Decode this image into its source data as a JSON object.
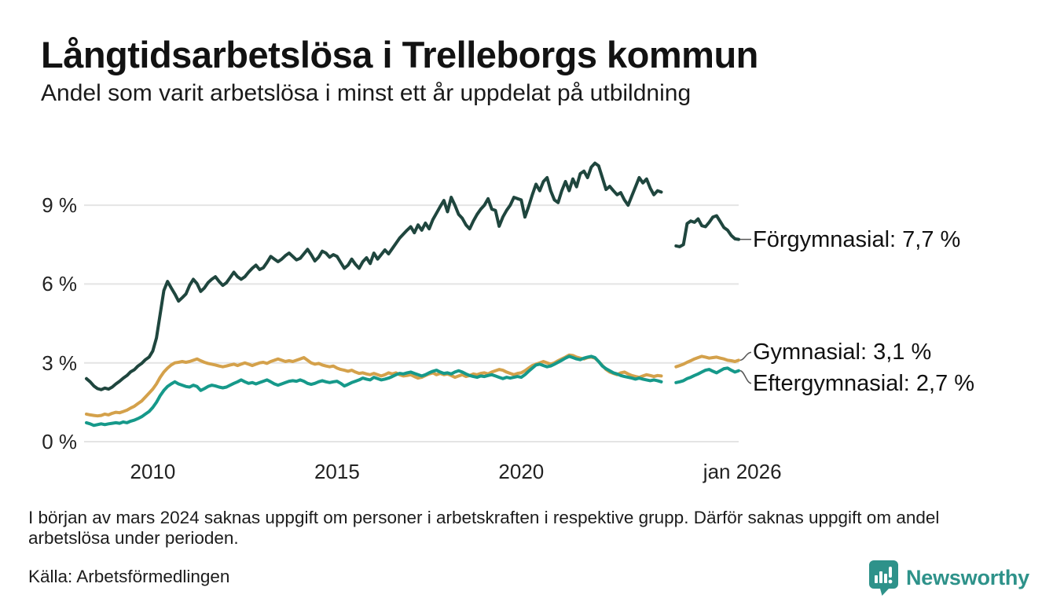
{
  "header": {
    "title": "Långtidsarbetslösa i Trelleborgs kommun",
    "subtitle": "Andel som varit arbetslösa i minst ett år uppdelat på utbildning"
  },
  "chart_data": {
    "type": "line",
    "title": "Långtidsarbetslösa i Trelleborgs kommun",
    "subtitle": "Andel som varit arbetslösa i minst ett år uppdelat på utbildning",
    "unit": "%",
    "x_start": 2008.2,
    "x_step": 0.1,
    "x_domain": [
      2008.2,
      2025.9
    ],
    "ylim": [
      0,
      10.8
    ],
    "grid": "horizontal",
    "grid_color": "#e4e4e4",
    "y_ticks": [
      {
        "value": 0,
        "label": "0 %"
      },
      {
        "value": 3,
        "label": "3 %"
      },
      {
        "value": 6,
        "label": "6 %"
      },
      {
        "value": 9,
        "label": "9 %"
      }
    ],
    "x_ticks": [
      {
        "value": 2010,
        "label": "2010"
      },
      {
        "value": 2015,
        "label": "2015"
      },
      {
        "value": 2020,
        "label": "2020"
      },
      {
        "value": 2026,
        "label": "jan 2026"
      }
    ],
    "series": [
      {
        "name": "Förgymnasial",
        "color": "#1f463e",
        "end_label": "Förgymnasial: 7,7 %",
        "end_value": 7.7,
        "values": [
          2.4,
          2.28,
          2.12,
          2.02,
          1.98,
          2.04,
          2.0,
          2.08,
          2.2,
          2.3,
          2.42,
          2.52,
          2.66,
          2.74,
          2.88,
          2.98,
          3.12,
          3.22,
          3.45,
          3.95,
          4.85,
          5.75,
          6.1,
          5.85,
          5.62,
          5.35,
          5.48,
          5.62,
          5.95,
          6.18,
          6.02,
          5.72,
          5.85,
          6.05,
          6.18,
          6.28,
          6.1,
          5.95,
          6.05,
          6.25,
          6.45,
          6.28,
          6.18,
          6.28,
          6.45,
          6.6,
          6.72,
          6.55,
          6.62,
          6.82,
          7.05,
          6.95,
          6.85,
          6.95,
          7.08,
          7.18,
          7.05,
          6.92,
          6.98,
          7.15,
          7.32,
          7.12,
          6.88,
          7.02,
          7.25,
          7.18,
          7.02,
          7.12,
          7.05,
          6.82,
          6.6,
          6.72,
          6.95,
          6.75,
          6.6,
          6.85,
          7.0,
          6.78,
          7.18,
          6.95,
          7.12,
          7.3,
          7.15,
          7.35,
          7.55,
          7.75,
          7.9,
          8.05,
          8.18,
          7.95,
          8.25,
          8.05,
          8.32,
          8.1,
          8.45,
          8.7,
          8.95,
          9.18,
          8.75,
          9.3,
          9.0,
          8.65,
          8.5,
          8.25,
          8.1,
          8.4,
          8.65,
          8.85,
          9.0,
          9.25,
          8.85,
          8.8,
          8.2,
          8.55,
          8.8,
          9.0,
          9.3,
          9.25,
          9.2,
          8.55,
          8.95,
          9.4,
          9.8,
          9.55,
          9.9,
          10.05,
          9.55,
          9.2,
          9.1,
          9.55,
          9.9,
          9.55,
          10.0,
          9.7,
          10.2,
          10.3,
          10.05,
          10.45,
          10.6,
          10.5,
          10.05,
          9.6,
          9.72,
          9.55,
          9.4,
          9.48,
          9.2,
          9.0,
          9.35,
          9.7,
          10.05,
          9.85,
          10.0,
          9.65,
          9.4,
          9.55,
          9.5,
          null,
          null,
          null,
          7.45,
          7.42,
          7.5,
          8.3,
          8.4,
          8.35,
          8.48,
          8.22,
          8.18,
          8.35,
          8.55,
          8.6,
          8.38,
          8.15,
          8.05,
          7.85,
          7.72,
          7.7
        ]
      },
      {
        "name": "Gymnasial",
        "color": "#d4a14b",
        "end_label": "Gymnasial: 3,1 %",
        "end_value": 3.1,
        "values": [
          1.05,
          1.02,
          1.0,
          0.98,
          1.0,
          1.05,
          1.02,
          1.08,
          1.12,
          1.1,
          1.15,
          1.2,
          1.28,
          1.35,
          1.45,
          1.55,
          1.7,
          1.85,
          2.0,
          2.2,
          2.45,
          2.65,
          2.8,
          2.92,
          3.0,
          3.02,
          3.05,
          3.02,
          3.05,
          3.1,
          3.15,
          3.08,
          3.02,
          2.98,
          2.95,
          2.92,
          2.88,
          2.85,
          2.88,
          2.92,
          2.95,
          2.9,
          2.95,
          3.0,
          2.95,
          2.9,
          2.95,
          3.0,
          3.02,
          2.98,
          3.05,
          3.1,
          3.15,
          3.1,
          3.05,
          3.08,
          3.05,
          3.1,
          3.15,
          3.2,
          3.1,
          3.0,
          2.95,
          2.98,
          2.92,
          2.88,
          2.85,
          2.88,
          2.8,
          2.75,
          2.72,
          2.68,
          2.72,
          2.65,
          2.6,
          2.62,
          2.58,
          2.55,
          2.6,
          2.55,
          2.5,
          2.55,
          2.62,
          2.58,
          2.62,
          2.55,
          2.5,
          2.52,
          2.55,
          2.48,
          2.42,
          2.45,
          2.52,
          2.58,
          2.62,
          2.55,
          2.6,
          2.55,
          2.58,
          2.52,
          2.45,
          2.5,
          2.55,
          2.48,
          2.52,
          2.58,
          2.55,
          2.6,
          2.62,
          2.58,
          2.65,
          2.7,
          2.75,
          2.72,
          2.65,
          2.6,
          2.55,
          2.6,
          2.62,
          2.7,
          2.8,
          2.9,
          2.95,
          3.0,
          3.05,
          3.0,
          2.95,
          3.0,
          3.08,
          3.15,
          3.22,
          3.3,
          3.28,
          3.22,
          3.18,
          3.15,
          3.2,
          3.22,
          3.18,
          3.05,
          2.9,
          2.75,
          2.65,
          2.6,
          2.55,
          2.62,
          2.65,
          2.58,
          2.52,
          2.48,
          2.45,
          2.5,
          2.55,
          2.52,
          2.48,
          2.52,
          2.5,
          null,
          null,
          null,
          2.85,
          2.9,
          2.95,
          3.02,
          3.08,
          3.15,
          3.2,
          3.25,
          3.22,
          3.18,
          3.2,
          3.22,
          3.18,
          3.15,
          3.1,
          3.08,
          3.05,
          3.1
        ]
      },
      {
        "name": "Eftergymnasial",
        "color": "#16998a",
        "end_label": "Eftergymnasial: 2,7 %",
        "end_value": 2.7,
        "values": [
          0.72,
          0.68,
          0.62,
          0.65,
          0.68,
          0.65,
          0.68,
          0.7,
          0.72,
          0.7,
          0.75,
          0.72,
          0.78,
          0.82,
          0.88,
          0.95,
          1.05,
          1.15,
          1.3,
          1.5,
          1.75,
          1.95,
          2.1,
          2.2,
          2.28,
          2.2,
          2.15,
          2.1,
          2.08,
          2.15,
          2.1,
          1.95,
          2.02,
          2.1,
          2.15,
          2.12,
          2.08,
          2.05,
          2.08,
          2.15,
          2.22,
          2.28,
          2.35,
          2.28,
          2.22,
          2.25,
          2.2,
          2.25,
          2.3,
          2.35,
          2.28,
          2.2,
          2.15,
          2.2,
          2.25,
          2.3,
          2.32,
          2.3,
          2.35,
          2.3,
          2.22,
          2.18,
          2.22,
          2.28,
          2.32,
          2.28,
          2.25,
          2.28,
          2.3,
          2.22,
          2.12,
          2.18,
          2.25,
          2.3,
          2.35,
          2.42,
          2.38,
          2.35,
          2.45,
          2.4,
          2.35,
          2.38,
          2.42,
          2.48,
          2.55,
          2.6,
          2.58,
          2.62,
          2.65,
          2.6,
          2.55,
          2.5,
          2.55,
          2.62,
          2.68,
          2.72,
          2.65,
          2.6,
          2.62,
          2.58,
          2.65,
          2.7,
          2.65,
          2.58,
          2.52,
          2.48,
          2.45,
          2.5,
          2.48,
          2.52,
          2.55,
          2.5,
          2.45,
          2.4,
          2.45,
          2.42,
          2.45,
          2.48,
          2.45,
          2.55,
          2.68,
          2.8,
          2.92,
          2.95,
          2.9,
          2.85,
          2.88,
          2.95,
          3.02,
          3.1,
          3.18,
          3.25,
          3.2,
          3.15,
          3.12,
          3.18,
          3.22,
          3.25,
          3.2,
          3.05,
          2.88,
          2.78,
          2.7,
          2.62,
          2.58,
          2.52,
          2.48,
          2.45,
          2.42,
          2.38,
          2.42,
          2.38,
          2.35,
          2.32,
          2.35,
          2.32,
          2.28,
          null,
          null,
          null,
          2.25,
          2.28,
          2.32,
          2.4,
          2.45,
          2.52,
          2.58,
          2.65,
          2.72,
          2.75,
          2.68,
          2.62,
          2.7,
          2.78,
          2.8,
          2.72,
          2.65,
          2.7
        ]
      }
    ]
  },
  "footer": {
    "note": "I början av mars 2024 saknas uppgift om personer i arbetskraften i respektive grupp. Därför saknas uppgift om andel arbetslösa under perioden.",
    "source": "Källa: Arbetsförmedlingen"
  },
  "branding": {
    "logo_text": "Newsworthy",
    "logo_color": "#2e928a"
  }
}
